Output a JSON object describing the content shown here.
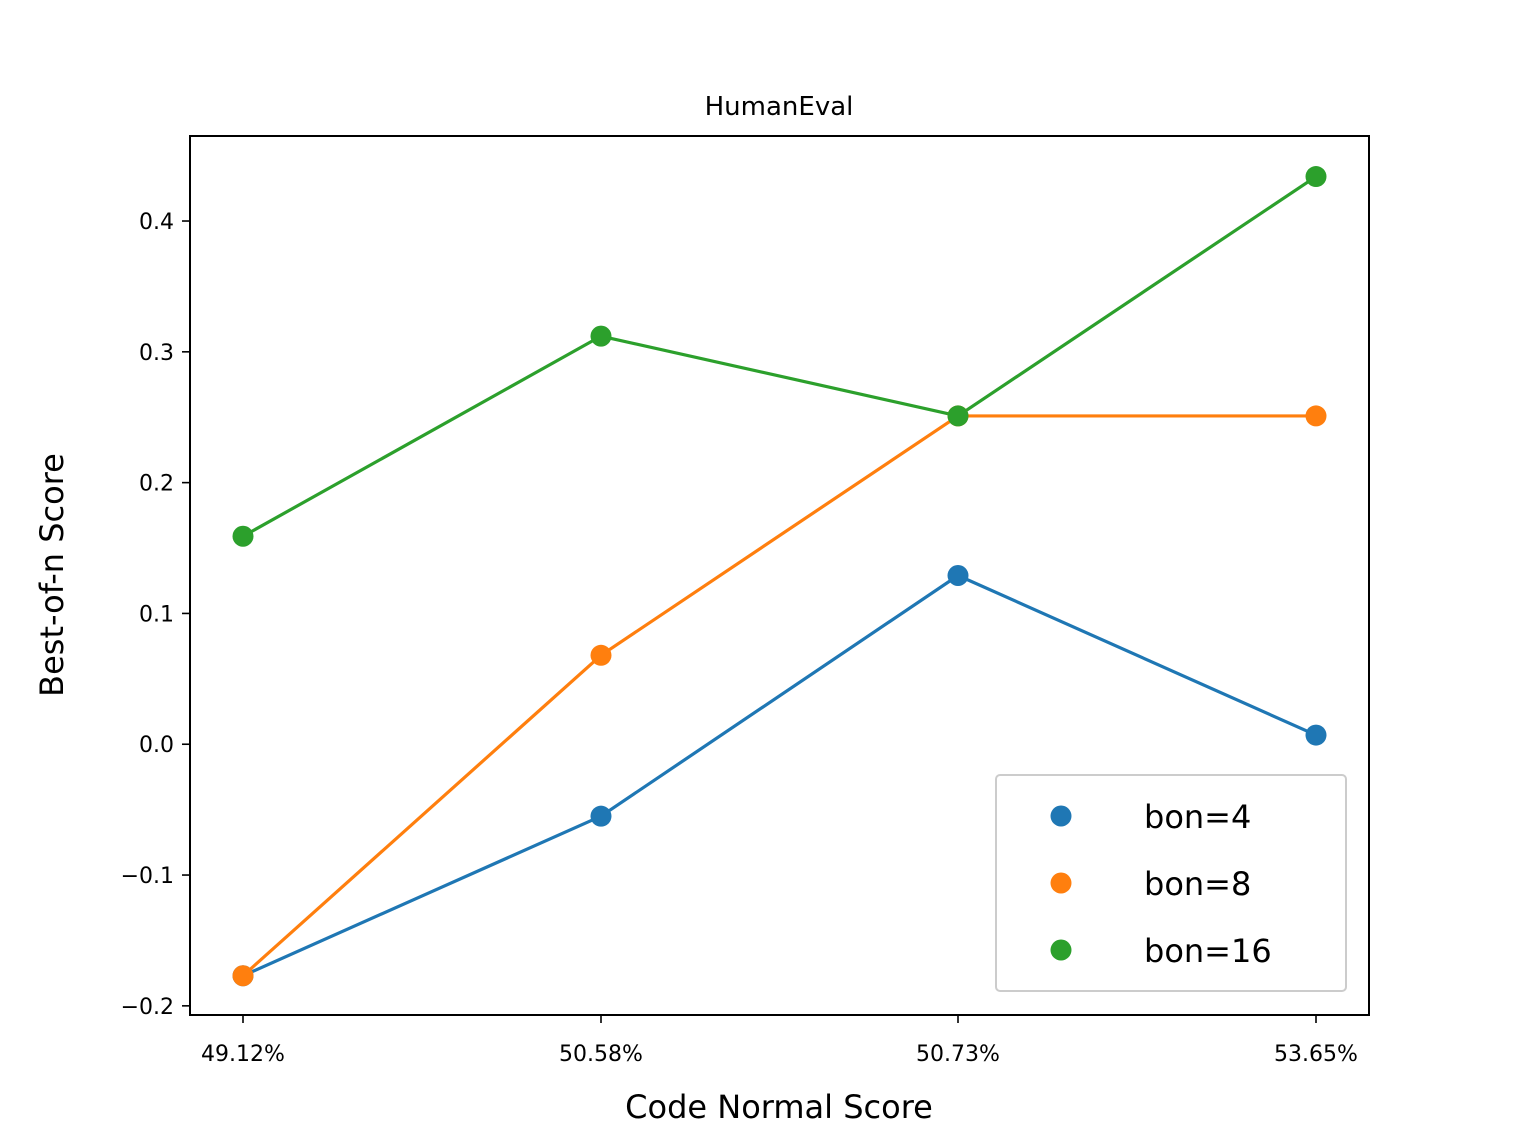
{
  "chart_data": {
    "type": "line",
    "title": "HumanEval",
    "xlabel": "Code Normal Score",
    "ylabel": "Best-of-n Score",
    "categories": [
      "49.12%",
      "50.58%",
      "50.73%",
      "53.65%"
    ],
    "ylim": [
      -0.207,
      0.465
    ],
    "yticks": [
      -0.2,
      -0.1,
      0.0,
      0.1,
      0.2,
      0.3,
      0.4
    ],
    "ytick_labels": [
      "−0.2",
      "−0.1",
      "0.0",
      "0.1",
      "0.2",
      "0.3",
      "0.4"
    ],
    "grid": false,
    "legend_position": "bottom-right",
    "series": [
      {
        "name": "bon=4",
        "color": "#1f77b4",
        "values": [
          -0.177,
          -0.055,
          0.129,
          0.007
        ]
      },
      {
        "name": "bon=8",
        "color": "#ff7f0e",
        "values": [
          -0.177,
          0.068,
          0.251,
          0.251
        ]
      },
      {
        "name": "bon=16",
        "color": "#2ca02c",
        "values": [
          0.159,
          0.312,
          0.251,
          0.434
        ]
      }
    ]
  }
}
